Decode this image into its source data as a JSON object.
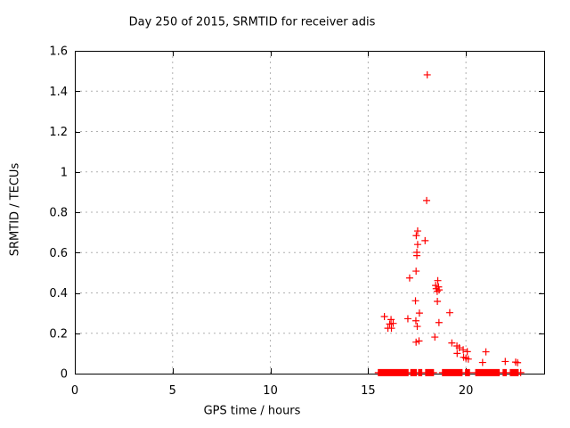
{
  "chart_data": {
    "type": "scatter",
    "title": "Day 250 of 2015, SRMTID for receiver adis",
    "xlabel": "GPS time / hours",
    "ylabel": "SRMTID / TECUs",
    "xlim": [
      0,
      24
    ],
    "ylim": [
      0,
      1.6
    ],
    "xticks": [
      0,
      5,
      10,
      15,
      20
    ],
    "yticks": [
      0,
      0.2,
      0.4,
      0.6,
      0.8,
      1,
      1.2,
      1.4,
      1.6
    ],
    "grid": true,
    "legend_position": "none",
    "marker": "+",
    "marker_color": "#ff0000",
    "axis_color": "#000000",
    "grid_color": "#b0b0b0",
    "series": [
      {
        "name": "SRMTID",
        "points": [
          [
            18.02,
            1.481
          ],
          [
            17.99,
            0.858
          ],
          [
            17.53,
            0.707
          ],
          [
            17.46,
            0.684
          ],
          [
            17.91,
            0.659
          ],
          [
            17.53,
            0.64
          ],
          [
            17.49,
            0.601
          ],
          [
            17.49,
            0.585
          ],
          [
            17.45,
            0.508
          ],
          [
            17.12,
            0.474
          ],
          [
            18.56,
            0.461
          ],
          [
            18.45,
            0.437
          ],
          [
            18.6,
            0.43
          ],
          [
            18.48,
            0.421
          ],
          [
            18.63,
            0.415
          ],
          [
            18.53,
            0.408
          ],
          [
            18.54,
            0.358
          ],
          [
            17.42,
            0.361
          ],
          [
            17.62,
            0.3
          ],
          [
            19.17,
            0.302
          ],
          [
            15.83,
            0.283
          ],
          [
            17.03,
            0.272
          ],
          [
            16.17,
            0.268
          ],
          [
            17.44,
            0.262
          ],
          [
            18.62,
            0.253
          ],
          [
            16.28,
            0.249
          ],
          [
            16.1,
            0.246
          ],
          [
            17.51,
            0.234
          ],
          [
            16.01,
            0.225
          ],
          [
            16.19,
            0.225
          ],
          [
            18.41,
            0.181
          ],
          [
            17.6,
            0.162
          ],
          [
            17.45,
            0.156
          ],
          [
            19.28,
            0.152
          ],
          [
            19.54,
            0.137
          ],
          [
            19.66,
            0.128
          ],
          [
            19.86,
            0.118
          ],
          [
            20.07,
            0.109
          ],
          [
            19.55,
            0.1
          ],
          [
            19.88,
            0.081
          ],
          [
            20.0,
            0.077
          ],
          [
            20.12,
            0.072
          ],
          [
            21.02,
            0.108
          ],
          [
            20.85,
            0.055
          ],
          [
            22.01,
            0.06
          ],
          [
            22.54,
            0.057
          ],
          [
            22.64,
            0.054
          ]
        ]
      }
    ],
    "baseline_band": {
      "y": 0.005,
      "marker_step_hours": 0.04,
      "runs": [
        [
          15.52,
          17.05
        ],
        [
          17.18,
          17.46
        ],
        [
          17.58,
          17.76
        ],
        [
          17.94,
          18.34
        ],
        [
          18.8,
          19.83
        ],
        [
          19.98,
          20.18
        ],
        [
          20.5,
          21.7
        ],
        [
          21.9,
          22.07
        ],
        [
          22.27,
          22.7
        ],
        [
          22.8,
          22.83
        ]
      ]
    }
  }
}
